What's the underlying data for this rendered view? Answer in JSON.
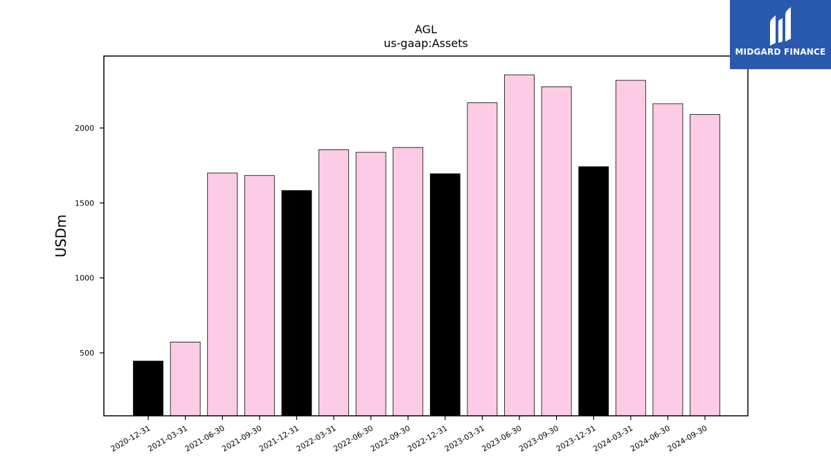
{
  "chart_data": {
    "type": "bar",
    "title": "AGL",
    "subtitle": "us-gaap:Assets",
    "xlabel": "",
    "ylabel": "USDm",
    "categories": [
      "2020-12-31",
      "2021-03-31",
      "2021-06-30",
      "2021-09-30",
      "2021-12-31",
      "2022-03-31",
      "2022-06-30",
      "2022-09-30",
      "2022-12-31",
      "2023-03-31",
      "2023-06-30",
      "2023-09-30",
      "2023-12-31",
      "2024-03-31",
      "2024-06-30",
      "2024-09-30"
    ],
    "values": [
      445,
      572,
      1700,
      1683,
      1583,
      1855,
      1838,
      1870,
      1695,
      2168,
      2355,
      2275,
      1742,
      2318,
      2162,
      2090
    ],
    "bar_colors": [
      "#000000",
      "#fccbe6",
      "#fccbe6",
      "#fccbe6",
      "#000000",
      "#fccbe6",
      "#fccbe6",
      "#fccbe6",
      "#000000",
      "#fccbe6",
      "#fccbe6",
      "#fccbe6",
      "#000000",
      "#fccbe6",
      "#fccbe6",
      "#fccbe6"
    ],
    "yticks": [
      500,
      1000,
      1500,
      2000
    ],
    "ylim": [
      80,
      2480
    ],
    "grid": false,
    "legend": false
  },
  "logo": {
    "text": "MIDGARD FINANCE",
    "background": "#2a5aad"
  }
}
